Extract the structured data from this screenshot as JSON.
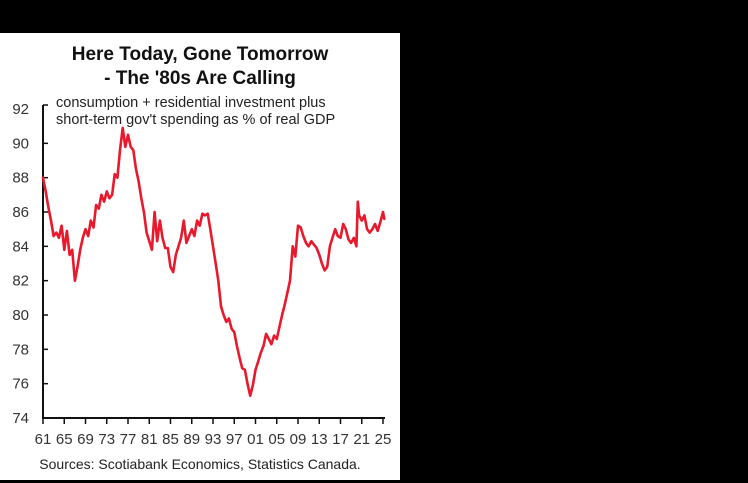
{
  "chart": {
    "title_line1": "Here Today, Gone Tomorrow",
    "title_line2": "- The '80s Are Calling",
    "subtitle_line1": "consumption + residential investment plus",
    "subtitle_line2": "short-term gov't spending as % of real GDP",
    "source": "Sources: Scotiabank Economics, Statistics Canada.",
    "line_color": "#e8192c"
  },
  "chart_data": {
    "type": "line",
    "title": "Here Today, Gone Tomorrow - The '80s Are Calling",
    "subtitle": "consumption + residential investment plus short-term gov't spending as % of real GDP",
    "xlabel": "",
    "ylabel": "",
    "ylim": [
      74,
      92
    ],
    "yticks": [
      74,
      76,
      78,
      80,
      82,
      84,
      86,
      88,
      90,
      92
    ],
    "xticks": [
      "61",
      "65",
      "69",
      "73",
      "77",
      "81",
      "85",
      "89",
      "93",
      "97",
      "01",
      "05",
      "09",
      "13",
      "17",
      "21",
      "25"
    ],
    "xrange": [
      1961,
      2025.5
    ],
    "grid": false,
    "legend": "none",
    "series": [
      {
        "name": "Consumption + residential investment + short-term gov't spending (% of real GDP)",
        "color": "#e8192c",
        "x": [
          1961.0,
          1961.5,
          1962.0,
          1962.5,
          1963.0,
          1963.5,
          1964.0,
          1964.5,
          1965.0,
          1965.5,
          1966.0,
          1966.5,
          1967.0,
          1967.5,
          1968.0,
          1968.5,
          1969.0,
          1969.5,
          1970.0,
          1970.5,
          1971.0,
          1971.5,
          1972.0,
          1972.5,
          1973.0,
          1973.5,
          1974.0,
          1974.5,
          1975.0,
          1975.5,
          1976.0,
          1976.5,
          1977.0,
          1977.5,
          1978.0,
          1978.5,
          1979.0,
          1979.5,
          1980.0,
          1980.5,
          1981.0,
          1981.5,
          1982.0,
          1982.5,
          1983.0,
          1983.5,
          1984.0,
          1984.5,
          1985.0,
          1985.5,
          1986.0,
          1986.5,
          1987.0,
          1987.5,
          1988.0,
          1988.5,
          1989.0,
          1989.5,
          1990.0,
          1990.5,
          1991.0,
          1991.5,
          1992.0,
          1992.5,
          1993.0,
          1993.5,
          1994.0,
          1994.5,
          1995.0,
          1995.5,
          1996.0,
          1996.5,
          1997.0,
          1997.5,
          1998.0,
          1998.5,
          1999.0,
          1999.5,
          2000.0,
          2000.5,
          2001.0,
          2001.5,
          2002.0,
          2002.5,
          2003.0,
          2003.5,
          2004.0,
          2004.5,
          2005.0,
          2005.5,
          2006.0,
          2006.5,
          2007.0,
          2007.5,
          2008.0,
          2008.5,
          2009.0,
          2009.5,
          2010.0,
          2010.5,
          2011.0,
          2011.5,
          2012.0,
          2012.5,
          2013.0,
          2013.5,
          2014.0,
          2014.5,
          2015.0,
          2015.5,
          2016.0,
          2016.5,
          2017.0,
          2017.5,
          2018.0,
          2018.5,
          2019.0,
          2019.5,
          2020.0,
          2020.25,
          2020.5,
          2021.0,
          2021.5,
          2022.0,
          2022.5,
          2023.0,
          2023.5,
          2024.0,
          2024.5,
          2025.0,
          2025.25
        ],
        "values": [
          88.0,
          87.2,
          86.3,
          85.5,
          84.6,
          84.8,
          84.5,
          85.2,
          83.8,
          84.9,
          83.5,
          83.8,
          82.0,
          82.8,
          83.8,
          84.5,
          85.0,
          84.6,
          85.5,
          85.1,
          86.4,
          86.2,
          87.0,
          86.6,
          87.2,
          86.8,
          87.0,
          88.2,
          88.0,
          89.6,
          90.9,
          89.8,
          90.5,
          89.8,
          89.6,
          88.5,
          87.8,
          86.8,
          86.0,
          84.8,
          84.3,
          83.8,
          86.0,
          84.3,
          85.5,
          84.5,
          83.9,
          83.9,
          82.8,
          82.5,
          83.5,
          84.0,
          84.5,
          85.5,
          84.2,
          84.6,
          85.0,
          84.6,
          85.5,
          85.2,
          85.9,
          85.8,
          85.9,
          85.0,
          84.0,
          83.0,
          82.0,
          80.5,
          80.0,
          79.6,
          79.8,
          79.2,
          79.0,
          78.2,
          77.5,
          76.9,
          76.8,
          76.0,
          75.3,
          75.9,
          76.8,
          77.3,
          77.8,
          78.2,
          78.9,
          78.6,
          78.3,
          78.8,
          78.6,
          79.3,
          80.0,
          80.6,
          81.3,
          82.0,
          84.0,
          83.4,
          85.2,
          85.1,
          84.6,
          84.2,
          84.0,
          84.3,
          84.1,
          83.9,
          83.5,
          83.0,
          82.6,
          82.8,
          84.0,
          84.5,
          85.0,
          84.6,
          84.5,
          85.3,
          85.0,
          84.4,
          84.2,
          84.5,
          84.0,
          86.6,
          85.8,
          85.5,
          85.8,
          85.0,
          84.8,
          85.0,
          85.3,
          84.9,
          85.4,
          86.0,
          85.6
        ]
      }
    ]
  }
}
